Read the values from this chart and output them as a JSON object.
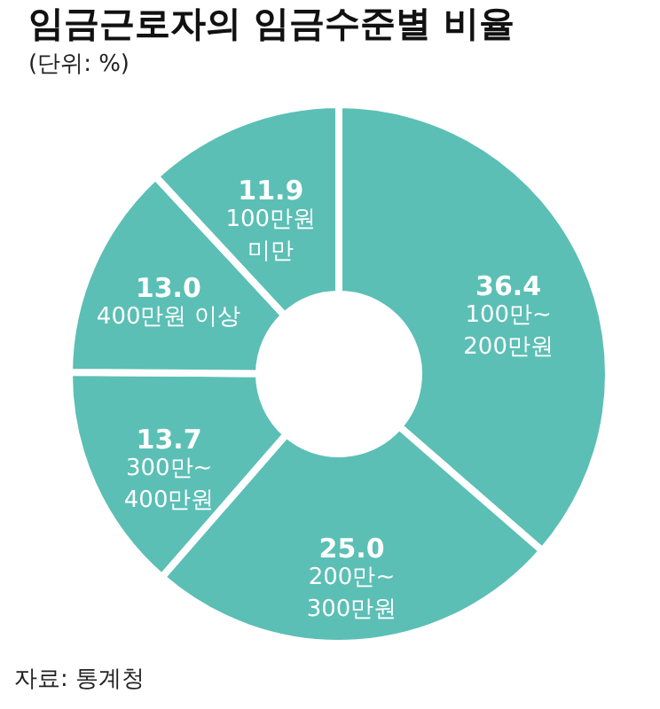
{
  "chart_data": {
    "type": "donut",
    "title": "임금근로자의 임금수준별 비율",
    "subtitle": "(단위: %)",
    "categories": [
      "100만~\n200만원",
      "200만~\n300만원",
      "300만~\n400만원",
      "400만원 이상",
      "100만원\n미만"
    ],
    "values": [
      36.4,
      25.0,
      13.7,
      13.0,
      11.9
    ],
    "colors": [
      "#5bbfb5",
      "#5bbfb5",
      "#5bbfb5",
      "#5bbfb5",
      "#5bbfb5"
    ],
    "value_labels": [
      "36.4",
      "25.0",
      "13.7",
      "13.0",
      "11.9"
    ],
    "legend": false,
    "annotations": [
      "자료: 통계청"
    ]
  }
}
